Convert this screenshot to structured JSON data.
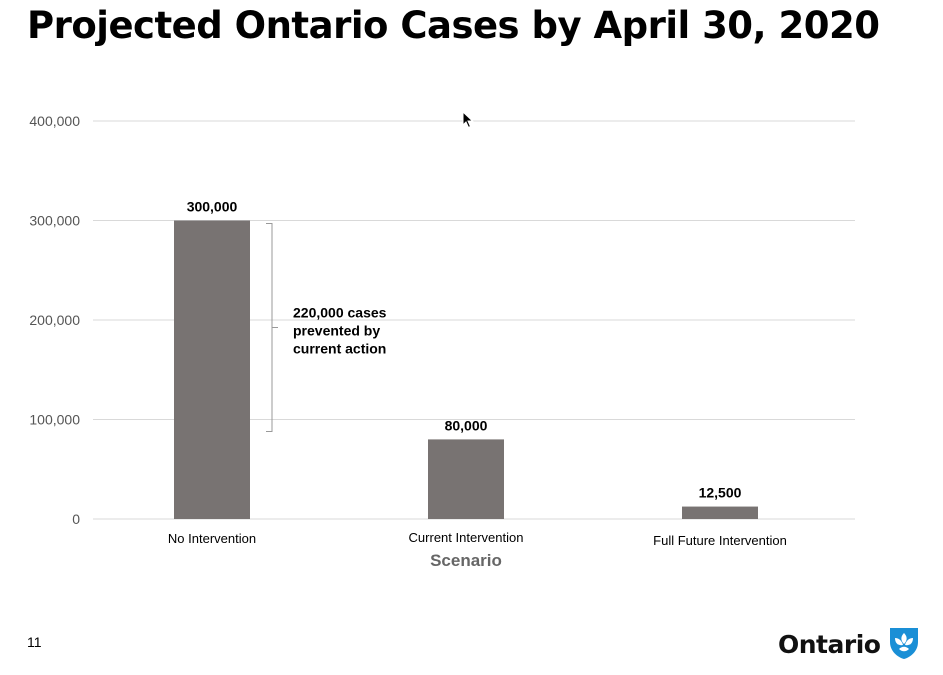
{
  "slide": {
    "title": "Projected Ontario Cases by April 30, 2020",
    "page_number": "11",
    "logo_text": "Ontario"
  },
  "colors": {
    "bar": "#787372",
    "grid": "#d9d9d9",
    "logo_blue": "#1a8fd6"
  },
  "chart_data": {
    "type": "bar",
    "title": "Projected Ontario Cases by April 30, 2020",
    "xlabel": "Scenario",
    "ylabel": "",
    "categories": [
      "No Intervention",
      "Current Intervention",
      "Full Future Intervention"
    ],
    "values": [
      300000,
      80000,
      12500
    ],
    "data_labels": [
      "300,000",
      "80,000",
      "12,500"
    ],
    "ylim": [
      0,
      400000
    ],
    "yticks": [
      0,
      100000,
      200000,
      300000,
      400000
    ],
    "ytick_labels": [
      "0",
      "100,000",
      "200,000",
      "300,000",
      "400,000"
    ],
    "grid": true,
    "annotation": {
      "lines": [
        "220,000 cases",
        "prevented by",
        "current action"
      ],
      "span": [
        88000,
        297000
      ]
    }
  }
}
